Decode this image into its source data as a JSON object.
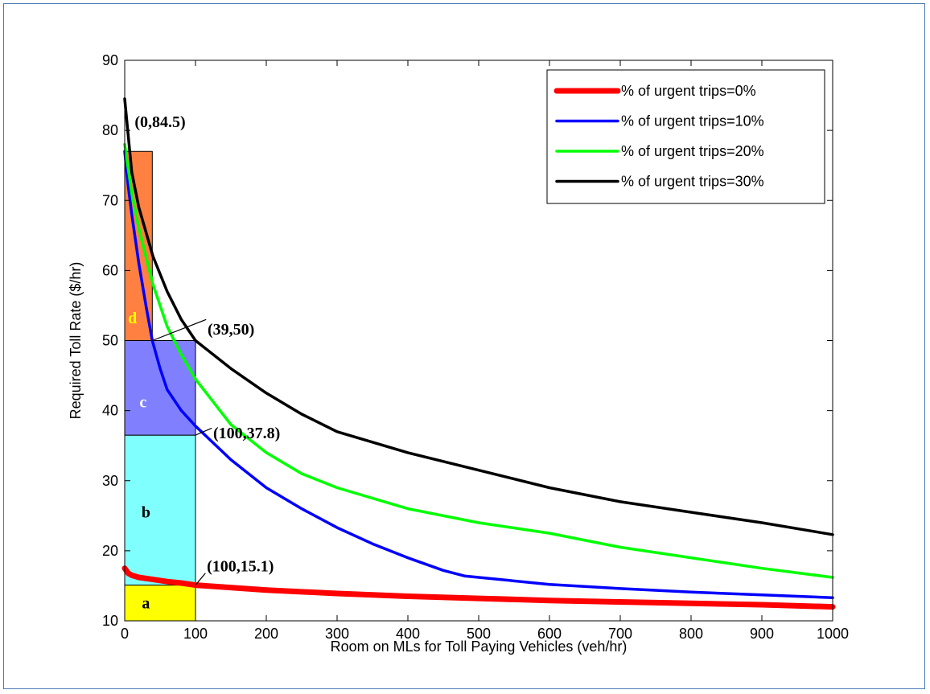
{
  "chart_data": {
    "type": "line",
    "xlabel": "Room on MLs for Toll Paying Vehicles (veh/hr)",
    "ylabel": "Required Toll Rate ($/hr)",
    "xlim": [
      0,
      1000
    ],
    "ylim": [
      10,
      90
    ],
    "xticks": [
      0,
      100,
      200,
      300,
      400,
      500,
      600,
      700,
      800,
      900,
      1000
    ],
    "yticks": [
      10,
      20,
      30,
      40,
      50,
      60,
      70,
      80,
      90
    ],
    "grid": false,
    "legend_position": "top-right",
    "series": [
      {
        "name": "% of urgent trips=0%",
        "color": "#ff0000",
        "thick": true,
        "x": [
          0,
          5,
          10,
          20,
          40,
          60,
          80,
          100,
          200,
          300,
          400,
          500,
          600,
          700,
          800,
          900,
          1000
        ],
        "y": [
          17.5,
          16.8,
          16.5,
          16.2,
          15.9,
          15.6,
          15.4,
          15.1,
          14.4,
          13.9,
          13.5,
          13.2,
          12.9,
          12.7,
          12.5,
          12.3,
          12.0
        ]
      },
      {
        "name": "% of urgent trips=10%",
        "color": "#0000ff",
        "thick": false,
        "x": [
          0,
          5,
          10,
          20,
          30,
          39,
          50,
          60,
          80,
          100,
          150,
          200,
          250,
          300,
          350,
          400,
          450,
          480,
          500,
          600,
          700,
          800,
          900,
          1000
        ],
        "y": [
          77,
          72,
          68,
          61,
          55,
          50,
          46,
          43,
          40,
          37.8,
          33,
          29,
          26,
          23.3,
          21,
          19,
          17.2,
          16.4,
          16.2,
          15.2,
          14.6,
          14.1,
          13.7,
          13.3
        ]
      },
      {
        "name": "% of urgent trips=20%",
        "color": "#00ff00",
        "thick": false,
        "x": [
          0,
          10,
          20,
          40,
          60,
          80,
          100,
          150,
          200,
          250,
          300,
          400,
          500,
          600,
          700,
          800,
          900,
          1000
        ],
        "y": [
          78,
          71,
          66,
          58,
          52,
          48,
          44.5,
          38,
          34,
          31,
          29,
          26,
          24,
          22.5,
          20.5,
          19,
          17.5,
          16.2
        ]
      },
      {
        "name": "% of urgent trips=30%",
        "color": "#000000",
        "thick": false,
        "x": [
          0,
          10,
          20,
          40,
          60,
          80,
          100,
          150,
          200,
          250,
          300,
          400,
          500,
          600,
          700,
          800,
          900,
          1000
        ],
        "y": [
          84.5,
          74,
          69,
          62,
          57,
          53,
          50,
          46,
          42.5,
          39.5,
          37,
          34,
          31.5,
          29,
          27,
          25.5,
          24,
          22.3
        ]
      }
    ],
    "regions": [
      {
        "label": "a",
        "color": "#ffff00",
        "label_color": "#000000",
        "x0": 0,
        "x1": 100,
        "y0": 10,
        "y1": 15.1,
        "label_x": 30,
        "label_y": 12.3
      },
      {
        "label": "b",
        "color": "#80ffff",
        "label_color": "#000000",
        "x0": 0,
        "x1": 100,
        "y0": 15.1,
        "y1": 36.5,
        "label_x": 30,
        "label_y": 25.3
      },
      {
        "label": "c",
        "color": "#8080ff",
        "label_color": "#ffffff",
        "x0": 0,
        "x1": 100,
        "y0": 36.5,
        "y1": 50,
        "label_x": 26,
        "label_y": 41
      },
      {
        "label": "d",
        "color": "#ff8040",
        "label_color": "#ffff00",
        "x0": 0,
        "x1": 39,
        "y0": 50,
        "y1": 77,
        "label_x": 11,
        "label_y": 53
      }
    ],
    "annotations": [
      {
        "text": "(0,84.5)",
        "x": 14,
        "y": 81,
        "lx": null,
        "ly": null
      },
      {
        "text": "(39,50)",
        "x": 117,
        "y": 51.4,
        "line_from": [
          39,
          50
        ],
        "line_to": [
          115,
          53
        ]
      },
      {
        "text": "(100,37.8)",
        "x": 125,
        "y": 36.6,
        "line_from": [
          100,
          36.5
        ],
        "line_to": [
          123,
          37.5
        ]
      },
      {
        "text": "(100,15.1)",
        "x": 116,
        "y": 17.6,
        "line_from": [
          100,
          15.1
        ],
        "line_to": [
          114,
          16.8
        ]
      }
    ]
  }
}
